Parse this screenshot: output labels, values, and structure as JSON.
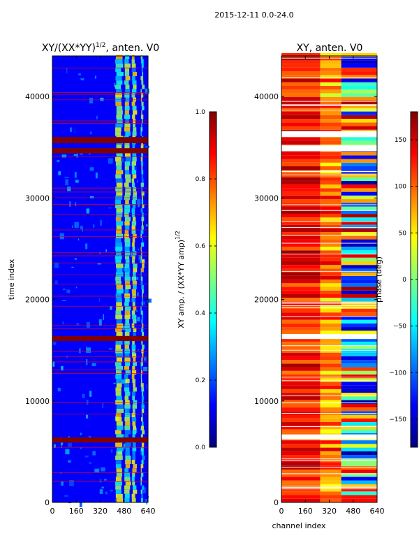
{
  "suptitle": "2015-12-11 0.0-24.0",
  "chart_data": [
    {
      "type": "heatmap",
      "title": "XY/(XX*YY)^{1/2}, anten. V0",
      "title_main": "XY/(XX*YY)",
      "title_sup": "1/2",
      "title_tail": ", anten. V0",
      "xlabel": "",
      "ylabel": "time index",
      "xlim": [
        0,
        640
      ],
      "ylim": [
        0,
        44000
      ],
      "xticks": [
        0,
        160,
        320,
        480,
        640
      ],
      "yticks": [
        0,
        10000,
        20000,
        30000,
        40000
      ],
      "colorbar": {
        "label": "XY amp. / (XX*YY amp)^{1/2}",
        "label_main": "XY amp. / (XX*YY amp)",
        "label_sup": "1/2",
        "range": [
          0.0,
          1.0
        ],
        "ticks": [
          "0.0",
          "0.2",
          "0.4",
          "0.6",
          "0.8",
          "1.0"
        ],
        "tick_values": [
          0.0,
          0.2,
          0.4,
          0.6,
          0.8,
          1.0
        ]
      },
      "base_value": 0.12,
      "bright_channel_bands": [
        [
          420,
          470
        ],
        [
          480,
          520
        ],
        [
          530,
          560
        ],
        [
          590,
          610
        ]
      ],
      "flagged_time_ranges": [
        [
          5900,
          6400
        ],
        [
          15900,
          16400
        ],
        [
          34400,
          34900
        ],
        [
          35400,
          36000
        ]
      ]
    },
    {
      "type": "heatmap",
      "title": "XY, anten. V0",
      "xlabel": "channel index",
      "ylabel": "",
      "xlim": [
        0,
        640
      ],
      "ylim": [
        0,
        44000
      ],
      "xticks": [
        0,
        160,
        320,
        480,
        640
      ],
      "yticks": [
        0,
        10000,
        20000,
        30000,
        40000
      ],
      "colorbar": {
        "label": "phase (deg)",
        "range": [
          -180,
          180
        ],
        "ticks": [
          "−150",
          "−100",
          "−50",
          "0",
          "50",
          "100",
          "150"
        ],
        "tick_values": [
          -150,
          -100,
          -50,
          0,
          50,
          100,
          150
        ]
      },
      "gap_time_ranges": [
        [
          6200,
          6700
        ],
        [
          16100,
          16600
        ],
        [
          34600,
          35200
        ],
        [
          36000,
          36600
        ]
      ]
    }
  ],
  "colors": {
    "jet": [
      "#00007f",
      "#0000ff",
      "#007fff",
      "#00ffff",
      "#7fff7f",
      "#ffff00",
      "#ff7f00",
      "#ff0000",
      "#7f0000"
    ],
    "flag_red": "#800000",
    "gap_white": "#ffffff"
  }
}
